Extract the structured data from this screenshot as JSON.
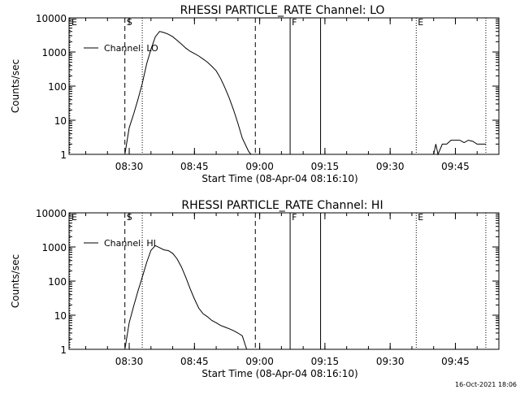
{
  "footer_timestamp": "16-Oct-2021 18:06",
  "chart_data": [
    {
      "type": "line",
      "title": "RHESSI PARTICLE_RATE Channel: LO",
      "xlabel": "Start Time (08-Apr-04 08:16:10)",
      "ylabel": "Counts/sec",
      "y_scale": "log",
      "ylim": [
        1,
        10000
      ],
      "xlim_minutes_label": [
        "08:17",
        "09:55"
      ],
      "x_tick_labels": [
        "08:30",
        "08:45",
        "09:00",
        "09:15",
        "09:30",
        "09:45"
      ],
      "y_tick_labels": [
        "1",
        "10",
        "100",
        "1000",
        "10000"
      ],
      "legend": {
        "position": "top-left",
        "label": "Channel: LO"
      },
      "markers": [
        {
          "label": "E",
          "time": "08:16:10",
          "style": "dotted"
        },
        {
          "label": "S",
          "time": "08:29",
          "style": "dashed"
        },
        {
          "label": "",
          "time": "08:33",
          "style": "dotted"
        },
        {
          "label": "",
          "time": "08:59",
          "style": "dashed"
        },
        {
          "label": "F",
          "time": "09:07",
          "style": "solid"
        },
        {
          "label": "",
          "time": "09:14",
          "style": "solid"
        },
        {
          "label": "E",
          "time": "09:36",
          "style": "dotted"
        },
        {
          "label": "",
          "time": "09:52",
          "style": "dotted"
        }
      ],
      "series": [
        {
          "x": [
            "08:29",
            "08:30",
            "08:31",
            "08:32",
            "08:33",
            "08:34",
            "08:35",
            "08:36",
            "08:37",
            "08:38",
            "08:39",
            "08:40",
            "08:41",
            "08:42",
            "08:43",
            "08:44",
            "08:45",
            "08:46",
            "08:47",
            "08:48",
            "08:49",
            "08:50",
            "08:51",
            "08:52",
            "08:53",
            "08:54",
            "08:55",
            "08:56",
            "08:57",
            "08:57:30",
            "08:58"
          ],
          "y": [
            1,
            6,
            15,
            40,
            120,
            450,
            1200,
            2800,
            4000,
            3700,
            3300,
            2800,
            2200,
            1700,
            1300,
            1050,
            900,
            760,
            620,
            500,
            380,
            280,
            170,
            90,
            45,
            20,
            8,
            3,
            1.6,
            1.2,
            1
          ]
        },
        {
          "x": [
            "09:40",
            "09:40:30",
            "09:41",
            "09:42",
            "09:43",
            "09:44",
            "09:45",
            "09:46",
            "09:47",
            "09:48",
            "09:49",
            "09:50",
            "09:51",
            "09:52"
          ],
          "y": [
            1,
            2,
            1,
            2,
            2,
            2.6,
            2.6,
            2.6,
            2.2,
            2.6,
            2.4,
            2,
            2,
            2
          ]
        }
      ]
    },
    {
      "type": "line",
      "title": "RHESSI PARTICLE_RATE Channel: HI",
      "xlabel": "Start Time (08-Apr-04 08:16:10)",
      "ylabel": "Counts/sec",
      "y_scale": "log",
      "ylim": [
        1,
        10000
      ],
      "xlim_minutes_label": [
        "08:17",
        "09:55"
      ],
      "x_tick_labels": [
        "08:30",
        "08:45",
        "09:00",
        "09:15",
        "09:30",
        "09:45"
      ],
      "y_tick_labels": [
        "1",
        "10",
        "100",
        "1000",
        "10000"
      ],
      "legend": {
        "position": "top-left",
        "label": "Channel: HI"
      },
      "markers": [
        {
          "label": "E",
          "time": "08:16:10",
          "style": "dotted"
        },
        {
          "label": "S",
          "time": "08:29",
          "style": "dashed"
        },
        {
          "label": "",
          "time": "08:33",
          "style": "dotted"
        },
        {
          "label": "",
          "time": "08:59",
          "style": "dashed"
        },
        {
          "label": "F",
          "time": "09:07",
          "style": "solid"
        },
        {
          "label": "",
          "time": "09:14",
          "style": "solid"
        },
        {
          "label": "E",
          "time": "09:36",
          "style": "dotted"
        },
        {
          "label": "",
          "time": "09:52",
          "style": "dotted"
        }
      ],
      "series": [
        {
          "x": [
            "08:29",
            "08:30",
            "08:31",
            "08:32",
            "08:33",
            "08:34",
            "08:35",
            "08:36",
            "08:37",
            "08:38",
            "08:39",
            "08:40",
            "08:41",
            "08:42",
            "08:43",
            "08:44",
            "08:45",
            "08:46",
            "08:47",
            "08:48",
            "08:49",
            "08:50",
            "08:51",
            "08:52",
            "08:53",
            "08:54",
            "08:55",
            "08:56",
            "08:57"
          ],
          "y": [
            1,
            6,
            18,
            50,
            130,
            350,
            800,
            1100,
            950,
            820,
            780,
            650,
            450,
            260,
            130,
            60,
            30,
            16,
            11,
            9,
            7,
            6,
            5,
            4.5,
            4,
            3.5,
            3,
            2.5,
            1
          ]
        }
      ]
    }
  ]
}
